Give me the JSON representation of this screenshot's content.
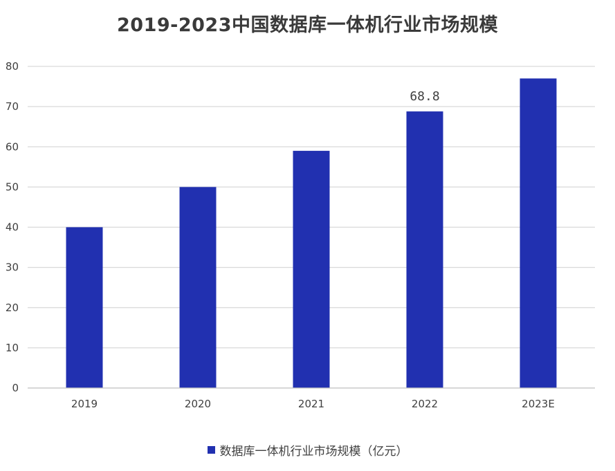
{
  "chart_data": {
    "type": "bar",
    "title": "2019-2023中国数据库一体机行业市场规模",
    "categories": [
      "2019",
      "2020",
      "2021",
      "2022",
      "2023E"
    ],
    "series": [
      {
        "name": "数据库一体机行业市场规模（亿元）",
        "values": [
          40,
          50,
          59,
          68.8,
          77
        ],
        "color": "#2130b0"
      }
    ],
    "data_labels": [
      {
        "category": "2022",
        "text": "68.8"
      }
    ],
    "ylim": [
      0,
      80
    ],
    "yticks": [
      "0",
      "10",
      "20",
      "30",
      "40",
      "50",
      "60",
      "70",
      "80"
    ],
    "grid": true,
    "gridline_color": "#d9d9d9",
    "legend_position": "bottom"
  }
}
